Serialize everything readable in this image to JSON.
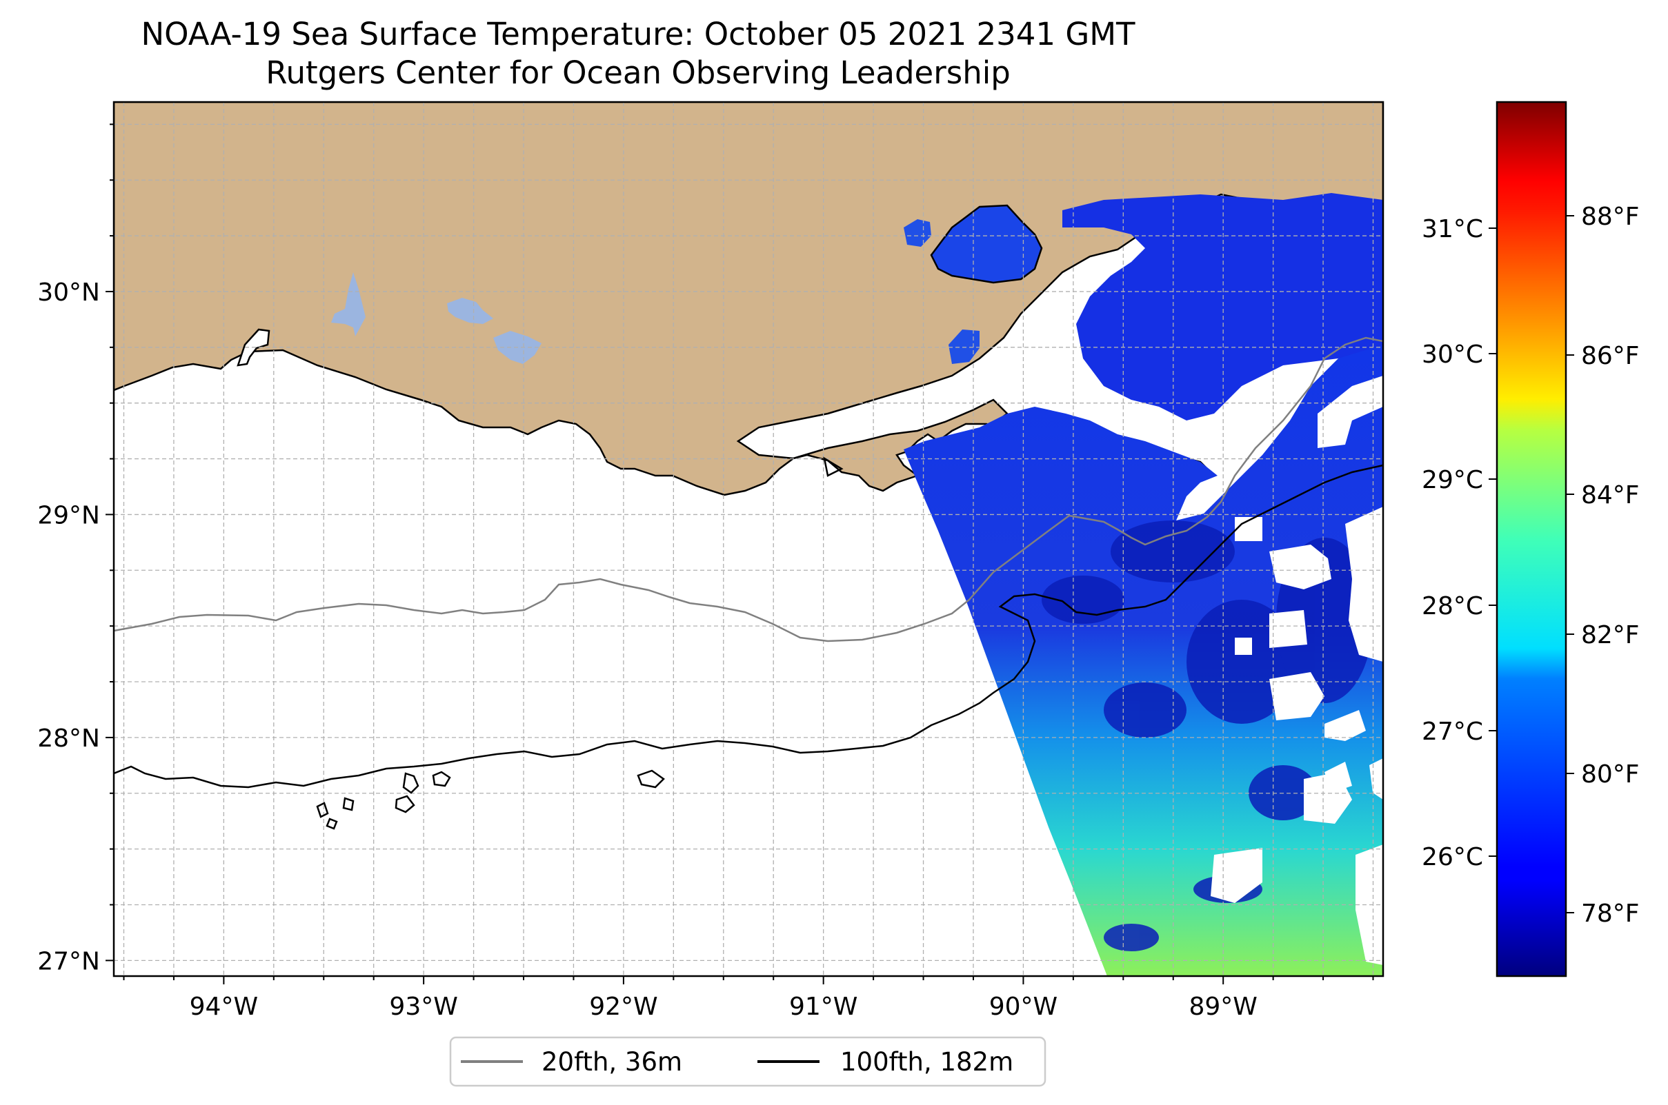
{
  "figure": {
    "title": "NOAA-19 Sea Surface Temperature: October 05 2021 2341 GMT",
    "subtitle": "Rutgers Center for Ocean Observing Leadership"
  },
  "map": {
    "lon_range": [
      -94.55,
      -88.2
    ],
    "lat_range": [
      26.93,
      30.85
    ],
    "lon_ticks": [
      {
        "value": -94,
        "label": "94°W"
      },
      {
        "value": -93,
        "label": "93°W"
      },
      {
        "value": -92,
        "label": "92°W"
      },
      {
        "value": -91,
        "label": "91°W"
      },
      {
        "value": -90,
        "label": "90°W"
      },
      {
        "value": -89,
        "label": "89°W"
      }
    ],
    "lat_ticks": [
      {
        "value": 30,
        "label": "30°N"
      },
      {
        "value": 29,
        "label": "29°N"
      },
      {
        "value": 28,
        "label": "28°N"
      },
      {
        "value": 27,
        "label": "27°N"
      }
    ],
    "gridlines": true,
    "colors": {
      "land": "#d2b48c",
      "lakes": "#9bb5e0",
      "contour_20fth": "#808080",
      "contour_100fth": "#000000"
    }
  },
  "legend": {
    "placement": "bottom-center",
    "items": [
      {
        "label": "20fth, 36m",
        "color": "#808080"
      },
      {
        "label": "100fth, 182m",
        "color": "#000000"
      }
    ]
  },
  "colorbar": {
    "colormap": "jet",
    "celsius_ticks": [
      "31°C",
      "30°C",
      "29°C",
      "28°C",
      "27°C",
      "26°C"
    ],
    "fahrenheit_ticks": [
      "88°F",
      "86°F",
      "84°F",
      "82°F",
      "80°F",
      "78°F"
    ]
  }
}
